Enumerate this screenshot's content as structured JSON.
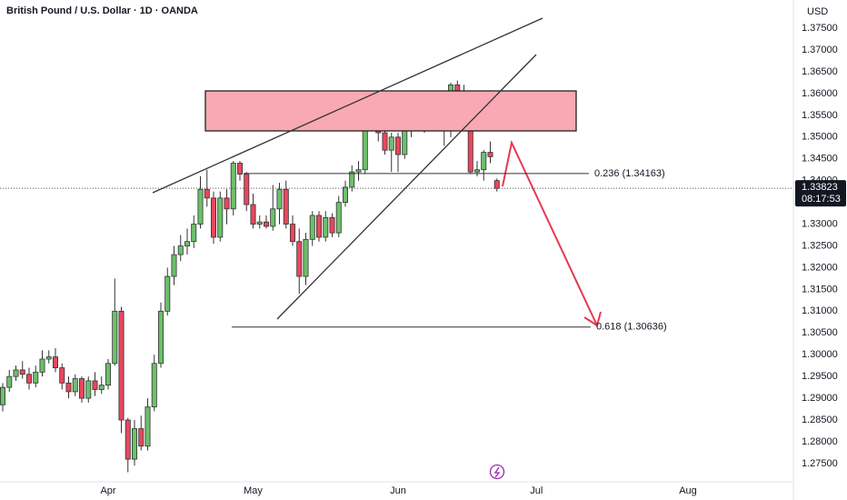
{
  "chart_data": {
    "type": "candlestick",
    "title": "British Pound / U.S. Dollar · 1D · OANDA",
    "y_axis_label": "USD",
    "categories": [
      null,
      null,
      null,
      null,
      null,
      null,
      null,
      null,
      null,
      null,
      null,
      null,
      null,
      null,
      null,
      null,
      "Apr",
      null,
      null,
      null,
      null,
      null,
      null,
      null,
      null,
      null,
      null,
      null,
      null,
      null,
      null,
      null,
      null,
      null,
      null,
      null,
      null,
      null,
      "May",
      null,
      null,
      null,
      null,
      null,
      null,
      null,
      null,
      null,
      null,
      null,
      null,
      null,
      null,
      null,
      null,
      null,
      null,
      null,
      null,
      null,
      "Jun",
      null,
      null,
      null,
      null,
      null,
      null,
      null,
      null,
      null,
      null,
      null,
      null,
      null,
      null,
      null,
      null,
      null,
      null,
      null,
      null,
      "Jul",
      null,
      null,
      null,
      null,
      null,
      null,
      null,
      null,
      null,
      null,
      null,
      null,
      null,
      null,
      null,
      null,
      null,
      null,
      null,
      null,
      null,
      null,
      "Aug",
      null
    ],
    "open": [
      1.2885,
      1.2925,
      1.295,
      1.2965,
      1.2955,
      1.2935,
      1.296,
      1.299,
      1.2995,
      1.297,
      1.2935,
      1.2915,
      1.2945,
      1.29,
      1.294,
      1.292,
      1.293,
      1.298,
      1.31,
      1.285,
      1.276,
      1.283,
      1.279,
      1.288,
      1.298,
      1.31,
      1.318,
      1.323,
      1.325,
      1.326,
      1.33,
      1.338,
      1.336,
      1.327,
      1.336,
      1.3335,
      1.344,
      1.3415,
      1.3345,
      1.33,
      1.3305,
      1.3295,
      1.3335,
      1.338,
      1.33,
      1.326,
      1.318,
      1.3265,
      1.332,
      1.327,
      1.3315,
      1.328,
      1.335,
      1.3385,
      1.342,
      1.3425,
      1.355,
      1.357,
      1.351,
      1.347,
      1.35,
      1.346,
      1.3535,
      1.353,
      1.3565,
      1.353,
      1.358,
      1.3555,
      1.354,
      1.362,
      1.3535,
      1.357,
      1.342,
      1.3425,
      1.3465,
      1.34,
      null,
      null,
      null,
      null,
      null,
      null,
      null,
      null,
      null,
      null,
      null,
      null,
      null,
      null,
      null,
      null,
      null,
      null,
      null,
      null,
      null,
      null,
      null,
      null,
      null,
      null,
      null,
      null,
      null,
      null
    ],
    "high": [
      1.2935,
      1.2965,
      1.2975,
      1.2985,
      1.297,
      1.2975,
      1.301,
      1.301,
      1.3015,
      1.298,
      1.295,
      1.2955,
      1.295,
      1.295,
      1.296,
      1.295,
      1.299,
      1.3175,
      1.311,
      1.2855,
      1.285,
      1.286,
      1.29,
      1.3,
      1.312,
      1.32,
      1.325,
      1.3275,
      1.329,
      1.332,
      1.341,
      1.3425,
      1.3375,
      1.3375,
      1.338,
      1.3445,
      1.3445,
      1.342,
      1.337,
      1.332,
      1.332,
      1.339,
      1.3395,
      1.34,
      1.332,
      1.329,
      1.328,
      1.333,
      1.333,
      1.333,
      1.3325,
      1.3365,
      1.34,
      1.3435,
      1.3445,
      1.356,
      1.3595,
      1.358,
      1.352,
      1.351,
      1.351,
      1.3545,
      1.356,
      1.36,
      1.3575,
      1.359,
      1.3595,
      1.3575,
      1.3625,
      1.363,
      1.362,
      1.358,
      1.3445,
      1.347,
      1.349,
      1.3405,
      null,
      null,
      null,
      null,
      null,
      null,
      null,
      null,
      null,
      null,
      null,
      null,
      null,
      null,
      null,
      null,
      null,
      null,
      null,
      null,
      null,
      null,
      null,
      null,
      null,
      null,
      null,
      null,
      null,
      null
    ],
    "low": [
      1.287,
      1.2915,
      1.294,
      1.2945,
      1.292,
      1.2925,
      1.295,
      1.298,
      1.296,
      1.292,
      1.29,
      1.2905,
      1.289,
      1.289,
      1.2905,
      1.291,
      1.292,
      1.2975,
      1.282,
      1.273,
      1.2745,
      1.278,
      1.278,
      1.287,
      1.297,
      1.309,
      1.316,
      1.3215,
      1.323,
      1.3245,
      1.329,
      1.334,
      1.3255,
      1.326,
      1.33,
      1.332,
      1.34,
      1.333,
      1.329,
      1.329,
      1.329,
      1.3285,
      1.33,
      1.329,
      1.325,
      1.314,
      1.316,
      1.325,
      1.326,
      1.326,
      1.327,
      1.327,
      1.334,
      1.3375,
      1.34,
      1.3415,
      1.354,
      1.349,
      1.346,
      1.342,
      1.342,
      1.345,
      1.35,
      1.352,
      1.351,
      1.352,
      1.353,
      1.348,
      1.35,
      1.352,
      1.352,
      1.3415,
      1.341,
      1.34,
      1.344,
      1.3375,
      null,
      null,
      null,
      null,
      null,
      null,
      null,
      null,
      null,
      null,
      null,
      null,
      null,
      null,
      null,
      null,
      null,
      null,
      null,
      null,
      null,
      null,
      null,
      null,
      null,
      null,
      null,
      null,
      null,
      null
    ],
    "close": [
      1.2925,
      1.295,
      1.2965,
      1.2955,
      1.2935,
      1.296,
      1.299,
      1.2995,
      1.297,
      1.2935,
      1.2915,
      1.2945,
      1.29,
      1.294,
      1.292,
      1.293,
      1.298,
      1.31,
      1.285,
      1.276,
      1.283,
      1.279,
      1.288,
      1.298,
      1.31,
      1.318,
      1.323,
      1.325,
      1.326,
      1.33,
      1.338,
      1.336,
      1.327,
      1.336,
      1.3335,
      1.344,
      1.3415,
      1.3345,
      1.33,
      1.3305,
      1.3295,
      1.3335,
      1.338,
      1.33,
      1.326,
      1.318,
      1.3265,
      1.332,
      1.327,
      1.3315,
      1.328,
      1.335,
      1.3385,
      1.342,
      1.3425,
      1.355,
      1.357,
      1.351,
      1.347,
      1.35,
      1.346,
      1.3535,
      1.353,
      1.3565,
      1.353,
      1.358,
      1.3555,
      1.354,
      1.362,
      1.3535,
      1.357,
      1.342,
      1.3425,
      1.3465,
      1.3455,
      1.33823,
      null,
      null,
      null,
      null,
      null,
      null,
      null,
      null,
      null,
      null,
      null,
      null,
      null,
      null,
      null,
      null,
      null,
      null,
      null,
      null,
      null,
      null,
      null,
      null,
      null,
      null,
      null,
      null,
      null,
      null
    ],
    "up_color": "#6cc06a",
    "down_color": "#e8475d",
    "ylim": [
      1.2708,
      1.3815
    ],
    "yticks": [
      {
        "value": 1.275,
        "label": "1.27500"
      },
      {
        "value": 1.28,
        "label": "1.28000"
      },
      {
        "value": 1.285,
        "label": "1.28500"
      },
      {
        "value": 1.29,
        "label": "1.29000"
      },
      {
        "value": 1.295,
        "label": "1.29500"
      },
      {
        "value": 1.3,
        "label": "1.30000"
      },
      {
        "value": 1.305,
        "label": "1.30500"
      },
      {
        "value": 1.31,
        "label": "1.31000"
      },
      {
        "value": 1.315,
        "label": "1.31500"
      },
      {
        "value": 1.32,
        "label": "1.32000"
      },
      {
        "value": 1.325,
        "label": "1.32500"
      },
      {
        "value": 1.33,
        "label": "1.33000"
      },
      {
        "value": 1.335,
        "label": "1.33500"
      },
      {
        "value": 1.34,
        "label": "1.34000"
      },
      {
        "value": 1.345,
        "label": "1.34500"
      },
      {
        "value": 1.35,
        "label": "1.35000"
      },
      {
        "value": 1.355,
        "label": "1.35500"
      },
      {
        "value": 1.36,
        "label": "1.36000"
      },
      {
        "value": 1.365,
        "label": "1.36500"
      },
      {
        "value": 1.37,
        "label": "1.37000"
      },
      {
        "value": 1.375,
        "label": "1.37500"
      }
    ],
    "grid": false,
    "last_price": 1.33823,
    "countdown": "08:17:53",
    "annotations": [
      {
        "text": "0.236 (1.34163)",
        "y": 1.34163
      },
      {
        "text": "0.618 (1.30636)",
        "y": 1.30636
      }
    ]
  }
}
